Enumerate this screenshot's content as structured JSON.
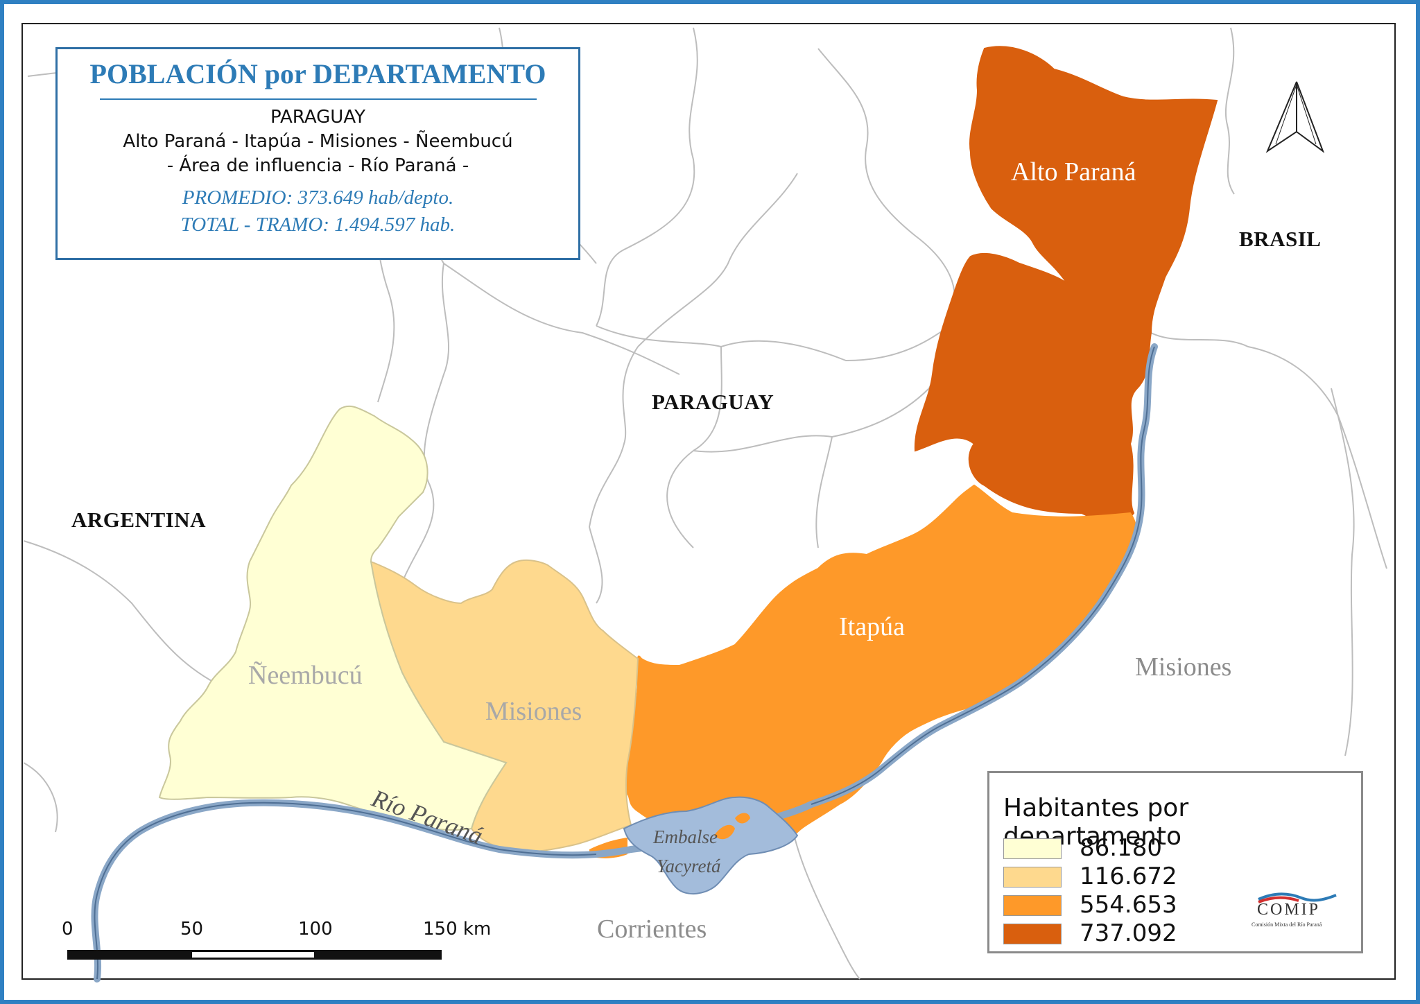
{
  "title_box": {
    "title": "POBLACIÓN por DEPARTAMENTO",
    "country": "PARAGUAY",
    "departments": "Alto Paraná - Itapúa - Misiones - Ñeembucú",
    "area": "- Área de influencia - Río Paraná -",
    "average": "PROMEDIO: 373.649 hab/depto.",
    "total": "TOTAL - TRAMO: 1.494.597 hab."
  },
  "countries": {
    "brasil": "BRASIL",
    "paraguay": "PARAGUAY",
    "argentina": "ARGENTINA"
  },
  "departments": [
    {
      "name": "Alto Paraná",
      "population": 737092,
      "color": "#d95f0e"
    },
    {
      "name": "Itapúa",
      "population": 554653,
      "color": "#fe9929"
    },
    {
      "name": "Misiones",
      "population": 116672,
      "color": "#fed98e"
    },
    {
      "name": "Ñeembucú",
      "population": 86180,
      "color": "#ffffd4"
    }
  ],
  "neighbor_provinces": {
    "misiones_ar": "Misiones",
    "corrientes": "Corrientes"
  },
  "water": {
    "river": "Río Paraná",
    "reservoir_line1": "Embalse",
    "reservoir_line2": "Yacyretá",
    "water_color": "#a3bcdb"
  },
  "legend": {
    "title": "Habitantes por departamento",
    "classes": [
      {
        "label": "86.180",
        "color": "#ffffd4"
      },
      {
        "label": "116.672",
        "color": "#fed98e"
      },
      {
        "label": "554.653",
        "color": "#fe9929"
      },
      {
        "label": "737.092",
        "color": "#d95f0e"
      }
    ]
  },
  "scale_bar": {
    "labels": [
      "0",
      "50",
      "100",
      "150 km"
    ]
  },
  "logo": {
    "name": "COMIP",
    "subtitle": "Comisión Mixta del Río Paraná"
  },
  "north_arrow": "north-arrow-icon",
  "frame_color": "#2f80c2"
}
